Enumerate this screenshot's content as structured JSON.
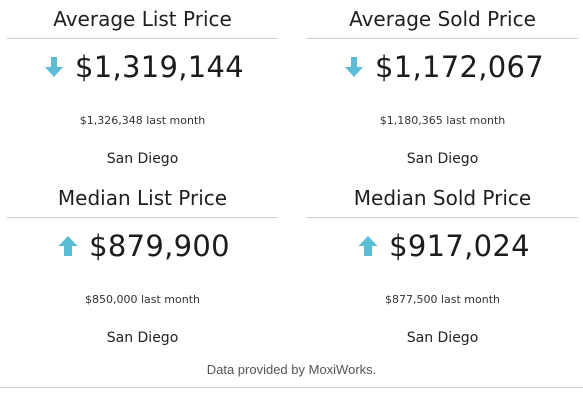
{
  "cards": [
    {
      "title": "Average List Price",
      "value": "$1,319,144",
      "trend": "down",
      "last_month": "$1,326,348 last month",
      "location": "San Diego"
    },
    {
      "title": "Average Sold Price",
      "value": "$1,172,067",
      "trend": "down",
      "last_month": "$1,180,365 last month",
      "location": "San Diego"
    },
    {
      "title": "Median List Price",
      "value": "$879,900",
      "trend": "up",
      "last_month": "$850,000 last month",
      "location": "San Diego"
    },
    {
      "title": "Median Sold Price",
      "value": "$917,024",
      "trend": "up",
      "last_month": "$877,500 last month",
      "location": "San Diego"
    }
  ],
  "footer": {
    "text": "Data provided by MoxiWorks."
  },
  "colors": {
    "arrow": "#5bbcd6"
  },
  "icons": {
    "down": "arrow-down-icon",
    "up": "arrow-up-icon"
  }
}
